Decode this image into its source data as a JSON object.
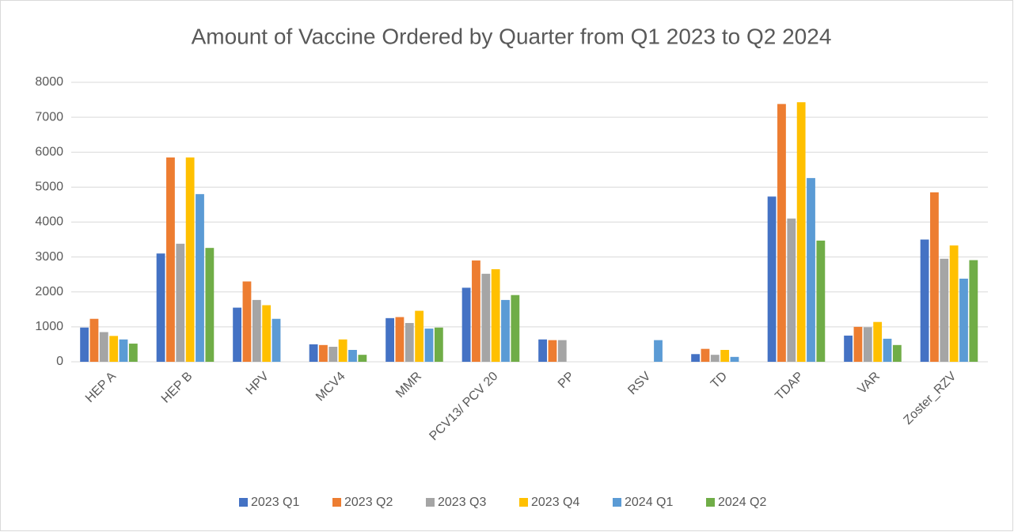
{
  "chart_data": {
    "type": "bar",
    "title": "Amount of Vaccine Ordered by Quarter from Q1 2023 to Q2 2024",
    "categories": [
      "HEP A",
      "HEP B",
      "HPV",
      "MCV4",
      "MMR",
      "PCV13/ PCV 20",
      "PP",
      "RSV",
      "TD",
      "TDAP",
      "VAR",
      "Zoster_RZV"
    ],
    "series": [
      {
        "name": "2023 Q1",
        "color": "#4472c4",
        "values": [
          980,
          3100,
          1550,
          500,
          1250,
          2120,
          640,
          null,
          220,
          4730,
          750,
          3500
        ]
      },
      {
        "name": "2023 Q2",
        "color": "#ed7d31",
        "values": [
          1230,
          5850,
          2300,
          480,
          1280,
          2900,
          620,
          null,
          370,
          7380,
          1000,
          4850
        ]
      },
      {
        "name": "2023 Q3",
        "color": "#a5a5a5",
        "values": [
          850,
          3380,
          1770,
          430,
          1110,
          2520,
          620,
          null,
          200,
          4100,
          990,
          2950
        ]
      },
      {
        "name": "2023 Q4",
        "color": "#ffc000",
        "values": [
          740,
          5850,
          1620,
          640,
          1460,
          2650,
          null,
          null,
          340,
          7430,
          1140,
          3330
        ]
      },
      {
        "name": "2024 Q1",
        "color": "#5b9bd5",
        "values": [
          640,
          4800,
          1230,
          340,
          950,
          1770,
          null,
          620,
          140,
          5260,
          660,
          2380
        ]
      },
      {
        "name": "2024 Q2",
        "color": "#70ad47",
        "values": [
          520,
          3260,
          null,
          200,
          980,
          1910,
          null,
          null,
          null,
          3470,
          480,
          2910
        ]
      }
    ],
    "ylim": [
      0,
      8000
    ],
    "yticks": [
      0,
      1000,
      2000,
      3000,
      4000,
      5000,
      6000,
      7000,
      8000
    ],
    "grid": true,
    "legend": "bottom"
  }
}
